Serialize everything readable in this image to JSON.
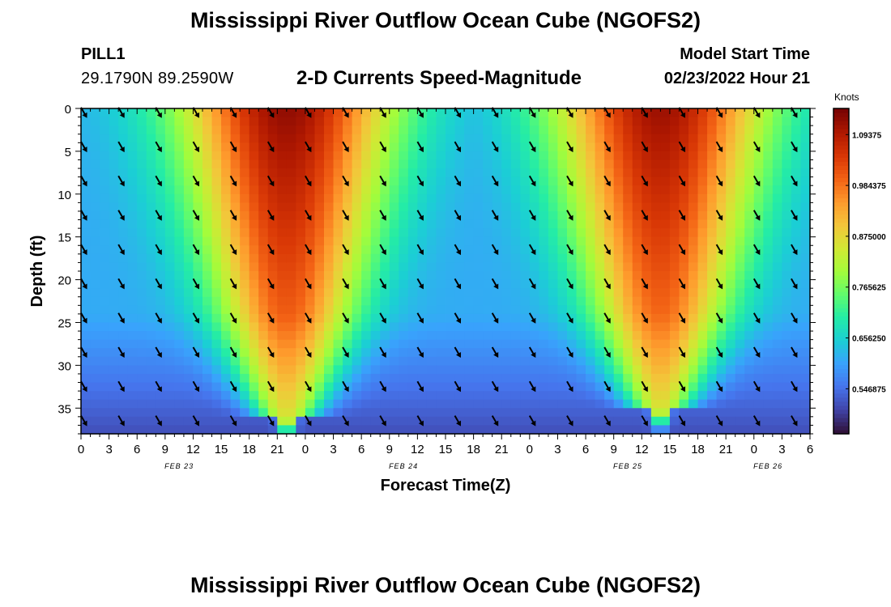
{
  "header": {
    "title": "Mississippi River Outflow Ocean Cube (NGOFS2)",
    "station": "PILL1",
    "coords": "29.1790N  89.2590W",
    "subtitle": "2-D Currents Speed-Magnitude",
    "start_label": "Model Start Time",
    "start_value": "02/23/2022 Hour 21"
  },
  "footer": {
    "title": "Mississippi River Outflow Ocean Cube (NGOFS2)"
  },
  "chart_data": {
    "type": "heatmap",
    "title": "2-D Currents Speed-Magnitude",
    "xlabel": "Forecast Time(Z)",
    "ylabel": "Depth (ft)",
    "x_ticks": [
      "0",
      "3",
      "6",
      "9",
      "12",
      "15",
      "18",
      "21",
      "0",
      "3",
      "6",
      "9",
      "12",
      "15",
      "18",
      "21",
      "0",
      "3",
      "6",
      "9",
      "12",
      "15",
      "18",
      "21",
      "0",
      "3",
      "6"
    ],
    "x_range_hours": [
      0,
      78
    ],
    "date_labels": [
      {
        "label": "FEB 23",
        "hour": 10.5
      },
      {
        "label": "FEB 24",
        "hour": 34.5
      },
      {
        "label": "FEB 25",
        "hour": 58.5
      },
      {
        "label": "FEB 26",
        "hour": 73.5
      }
    ],
    "y_ticks": [
      "0",
      "5",
      "10",
      "15",
      "20",
      "25",
      "30",
      "35"
    ],
    "ylim": [
      38,
      0
    ],
    "colorbar": {
      "label": "Knots",
      "ticks": [
        "1.09375",
        "0.984375",
        "0.875000",
        "0.765625",
        "0.656250",
        "0.546875"
      ],
      "range": [
        0.45,
        1.15
      ],
      "palette": [
        "#30123b",
        "#4145ab",
        "#4675ed",
        "#39a2fc",
        "#1bcfd4",
        "#24eca6",
        "#61fc6c",
        "#a4fc3b",
        "#d1e834",
        "#f3c63a",
        "#fe9b2d",
        "#f36315",
        "#d93806",
        "#b11901",
        "#7a0403"
      ]
    },
    "speed_peaks": [
      {
        "hour": 22,
        "depth_ft": 0,
        "value": 1.13,
        "trough_depth_ft": 36
      },
      {
        "hour": 62,
        "depth_ft": 0,
        "value": 1.12,
        "trough_depth_ft": 35
      }
    ],
    "speed_minimum": {
      "value": 0.48,
      "hour": 44,
      "depth_ft": 38
    },
    "arrows": {
      "direction": "south-east",
      "columns_hours": [
        0,
        4,
        8,
        12,
        16,
        20,
        24,
        28,
        32,
        36,
        40,
        44,
        48,
        52,
        56,
        60,
        64,
        68,
        72,
        76
      ],
      "rows_depth_ft": [
        0,
        4,
        8,
        12,
        16,
        20,
        24,
        28,
        32,
        36
      ]
    }
  }
}
